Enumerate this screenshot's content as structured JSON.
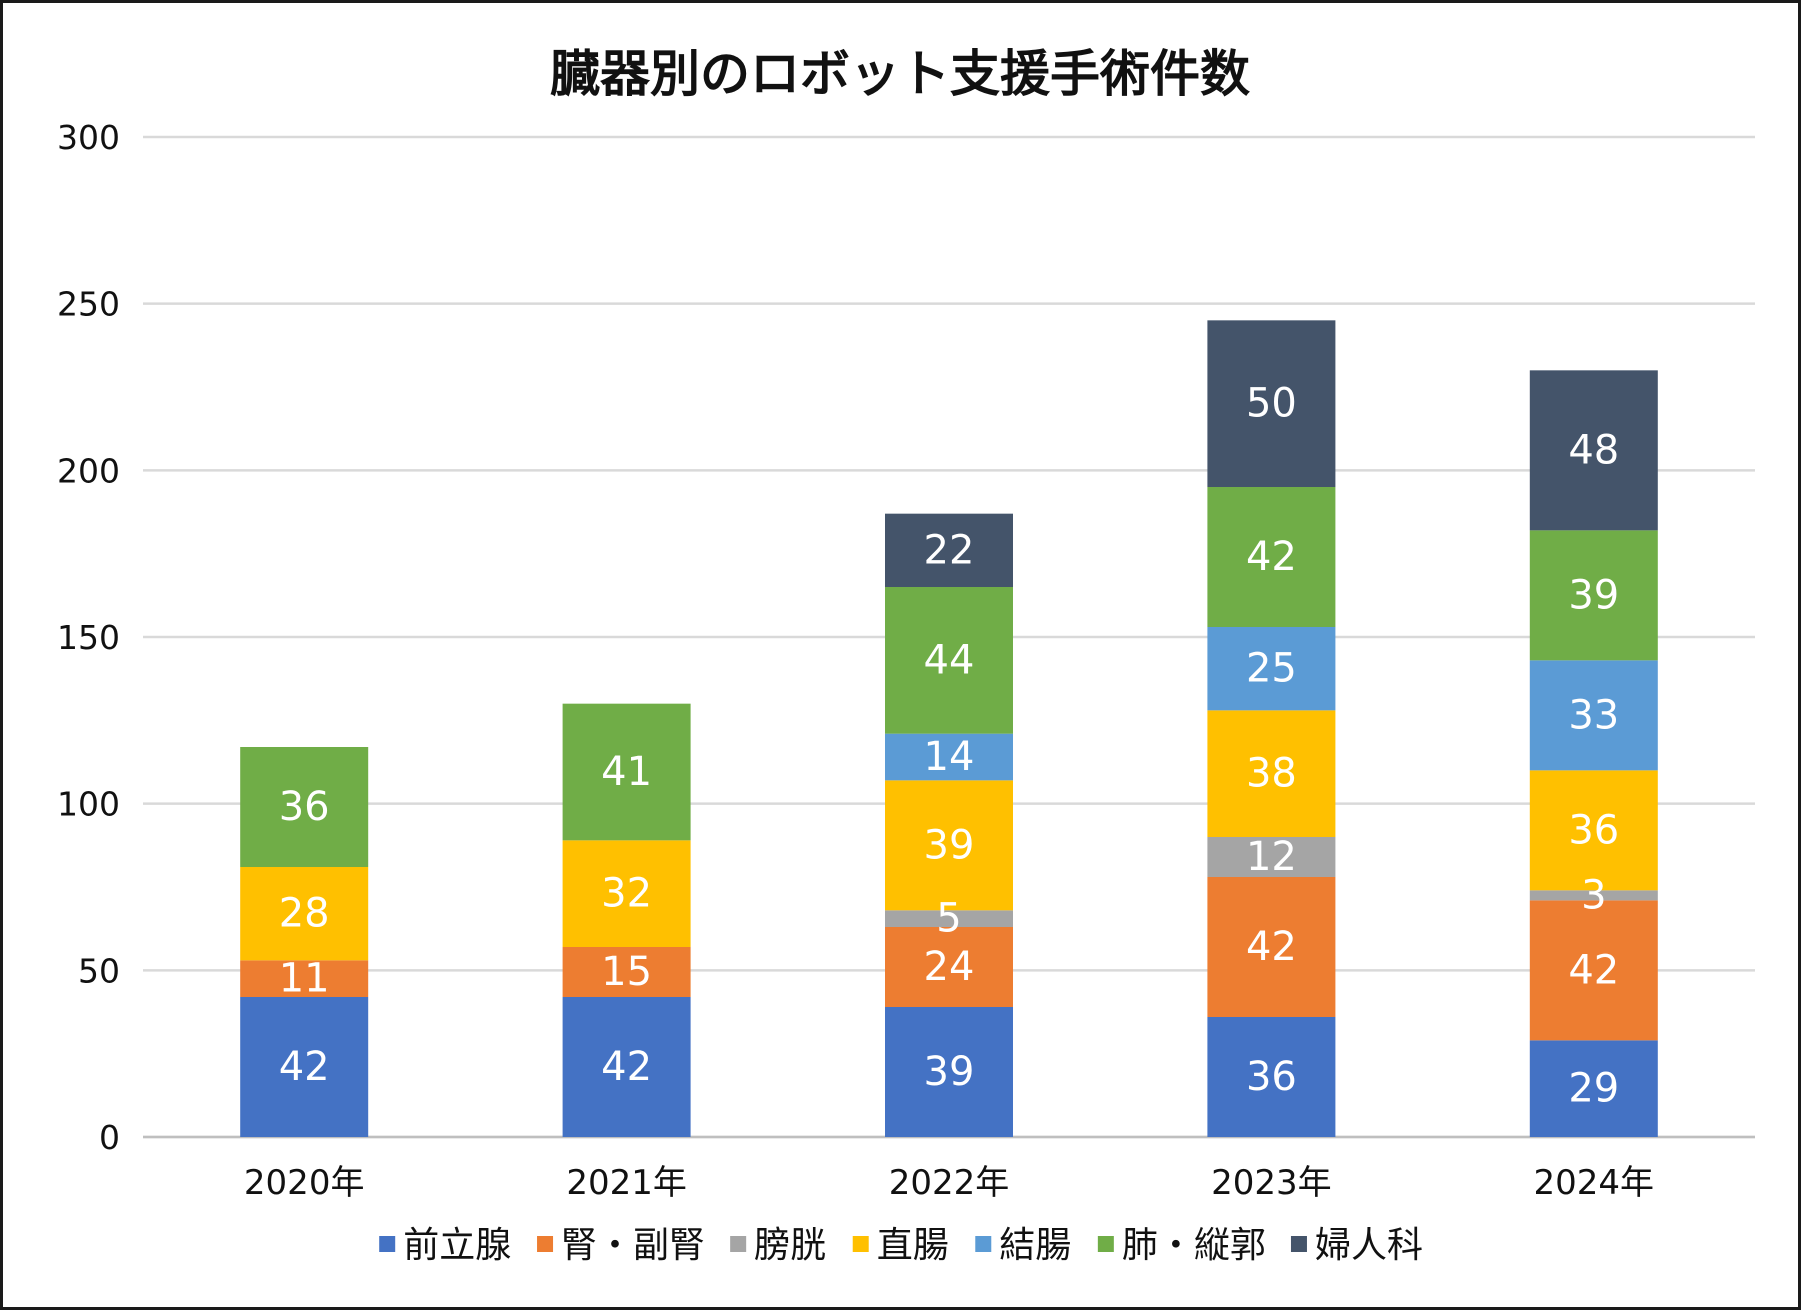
{
  "chart_data": {
    "type": "bar",
    "stacked": true,
    "title": "臓器別のロボット支援手術件数",
    "categories": [
      "2020年",
      "2021年",
      "2022年",
      "2023年",
      "2024年"
    ],
    "series": [
      {
        "name": "前立腺",
        "color": "#4472C4",
        "values": [
          42,
          42,
          39,
          36,
          29
        ]
      },
      {
        "name": "腎・副腎",
        "color": "#ED7D31",
        "values": [
          11,
          15,
          24,
          42,
          42
        ]
      },
      {
        "name": "膀胱",
        "color": "#A5A5A5",
        "values": [
          0,
          0,
          5,
          12,
          3
        ]
      },
      {
        "name": "直腸",
        "color": "#FFC000",
        "values": [
          28,
          32,
          39,
          38,
          36
        ]
      },
      {
        "name": "結腸",
        "color": "#5B9BD5",
        "values": [
          0,
          0,
          14,
          25,
          33
        ]
      },
      {
        "name": "肺・縦郭",
        "color": "#70AD47",
        "values": [
          36,
          41,
          44,
          42,
          39
        ]
      },
      {
        "name": "婦人科",
        "color": "#44546A",
        "values": [
          0,
          0,
          22,
          50,
          48
        ]
      }
    ],
    "ylim": [
      0,
      300
    ],
    "yticks": [
      0,
      50,
      100,
      150,
      200,
      250,
      300
    ],
    "grid": true,
    "legend_position": "bottom",
    "xlabel": "",
    "ylabel": ""
  }
}
